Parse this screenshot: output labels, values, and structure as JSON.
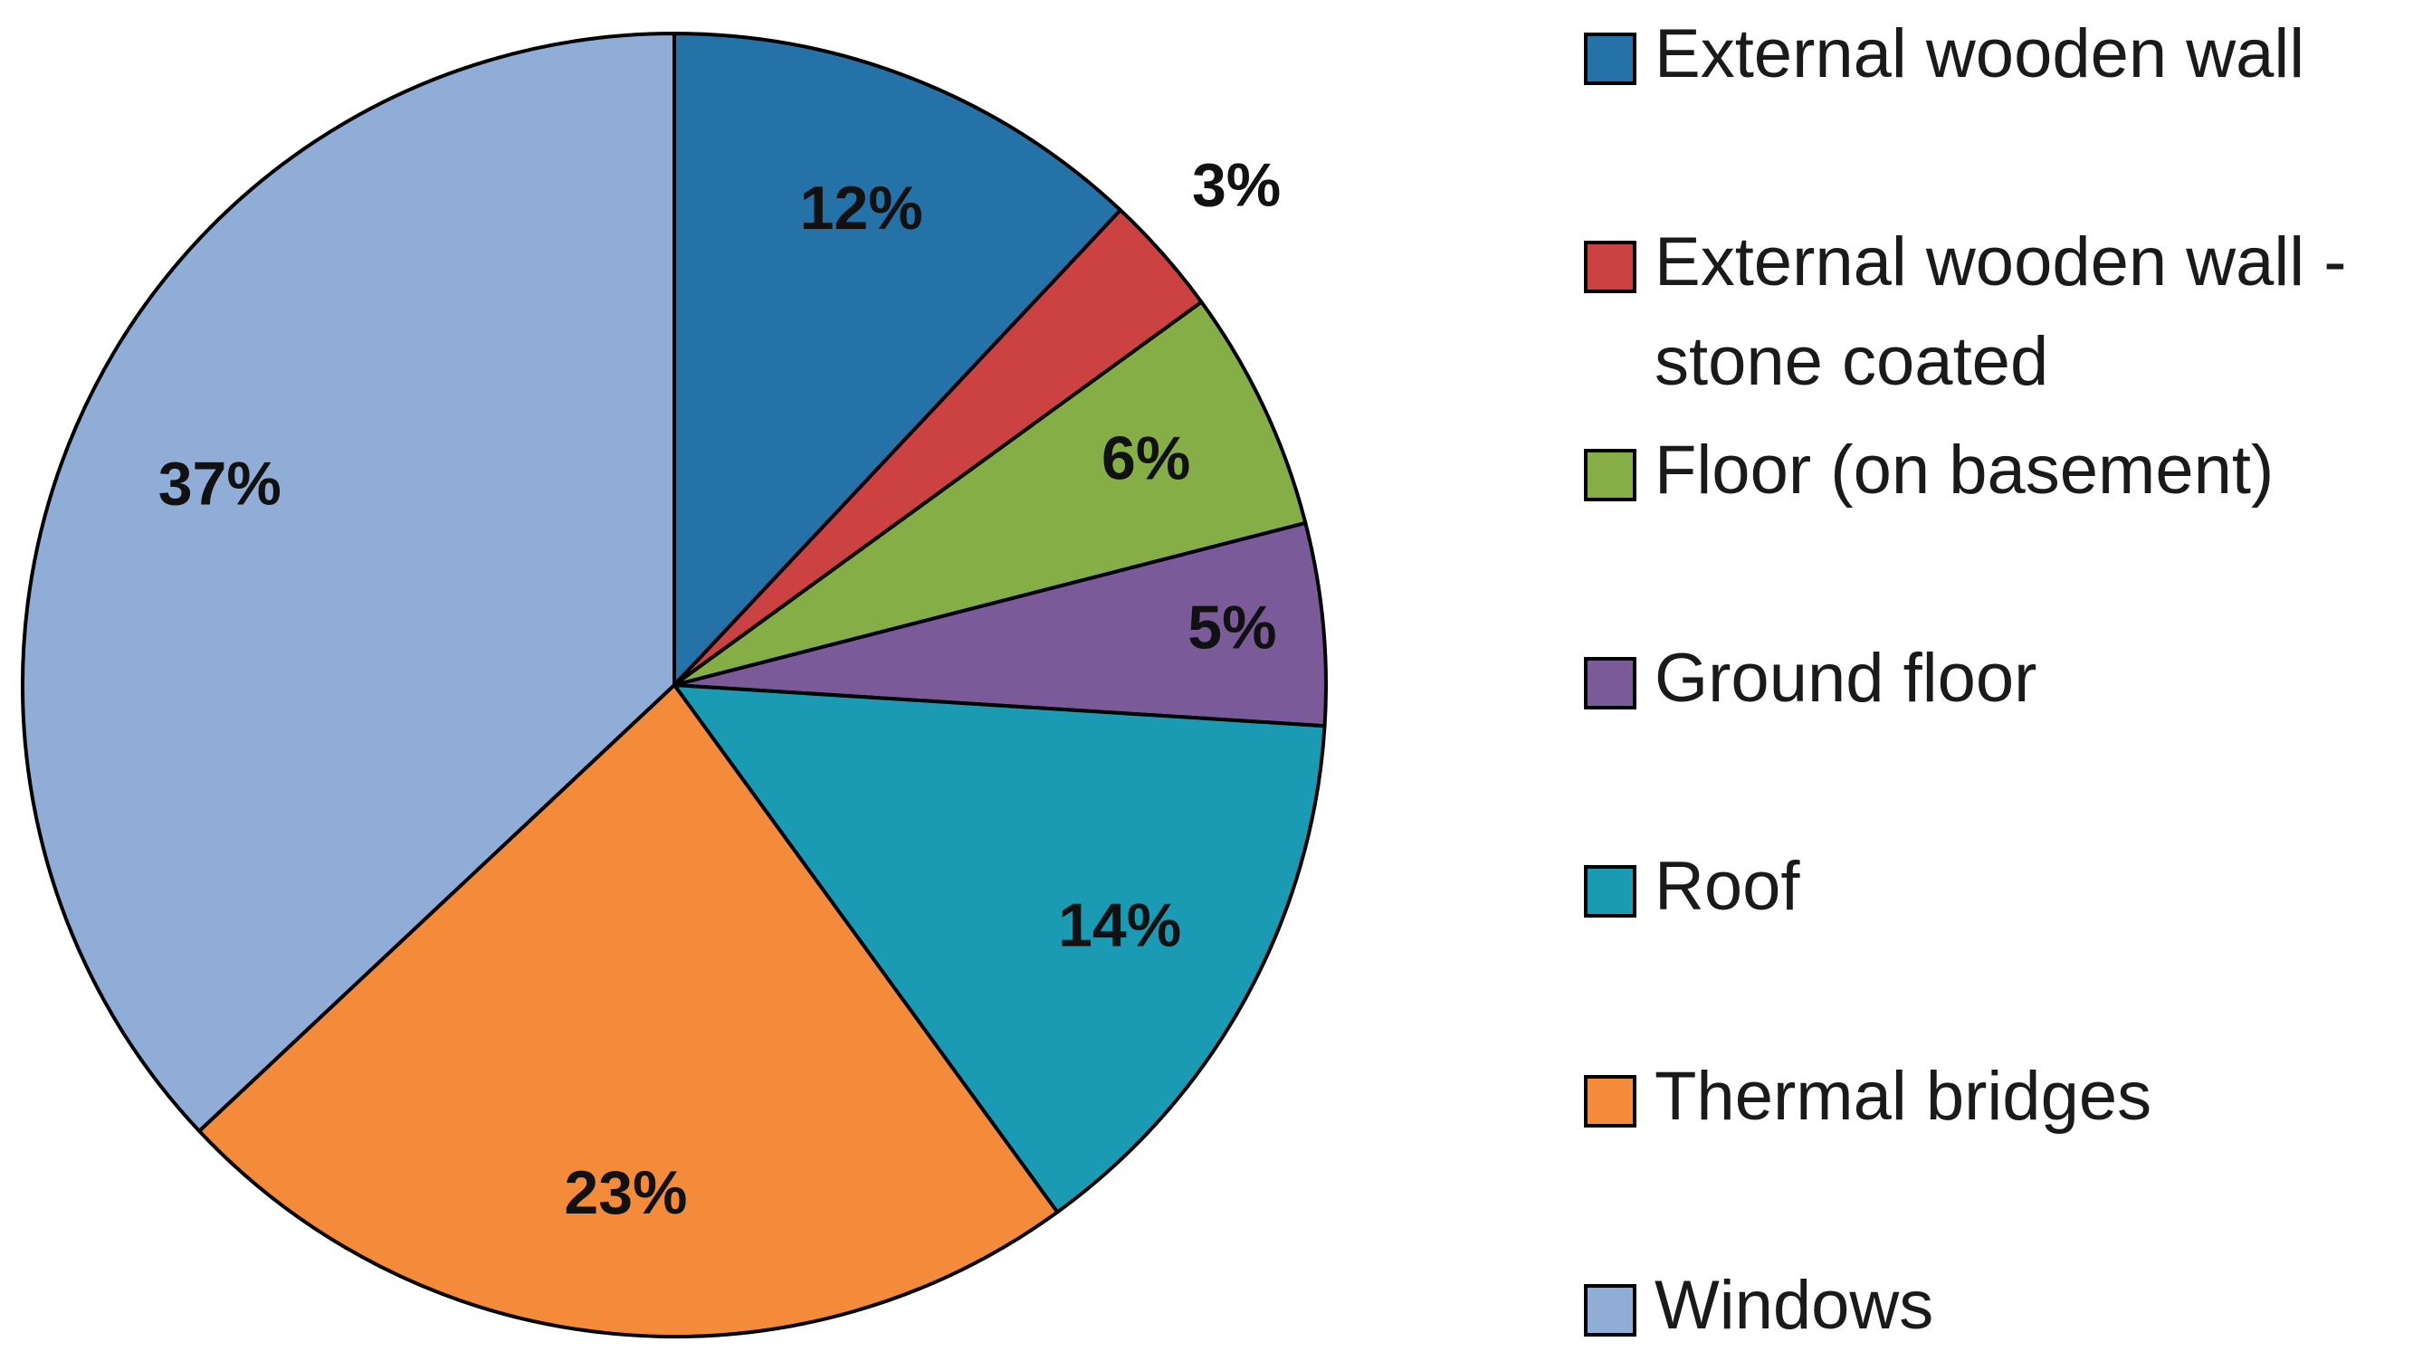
{
  "chart_data": {
    "type": "pie",
    "start_angle_deg": 0,
    "direction": "clockwise",
    "slices": [
      {
        "name": "External wooden wall",
        "value": 12,
        "label": "12%",
        "color": "#2472A8"
      },
      {
        "name": "External wooden wall - stone coated",
        "value": 3,
        "label": "3%",
        "color": "#CC4242"
      },
      {
        "name": "Floor (on basement)",
        "value": 6,
        "label": "6%",
        "color": "#86AE47"
      },
      {
        "name": "Ground floor",
        "value": 5,
        "label": "5%",
        "color": "#7B5A9A"
      },
      {
        "name": "Roof",
        "value": 14,
        "label": "14%",
        "color": "#1A9BB3"
      },
      {
        "name": "Thermal bridges",
        "value": 23,
        "label": "23%",
        "color": "#F38B3B"
      },
      {
        "name": "Windows",
        "value": 37,
        "label": "37%",
        "color": "#8FADD6"
      }
    ],
    "legend": {
      "placement": "right",
      "entries": [
        {
          "lines": [
            "External wooden wall"
          ]
        },
        {
          "lines": [
            "External wooden wall -",
            "stone coated"
          ]
        },
        {
          "lines": [
            "Floor (on basement)"
          ]
        },
        {
          "lines": [
            "Ground floor"
          ]
        },
        {
          "lines": [
            "Roof"
          ]
        },
        {
          "lines": [
            "Thermal bridges"
          ]
        },
        {
          "lines": [
            "Windows"
          ]
        }
      ]
    }
  }
}
